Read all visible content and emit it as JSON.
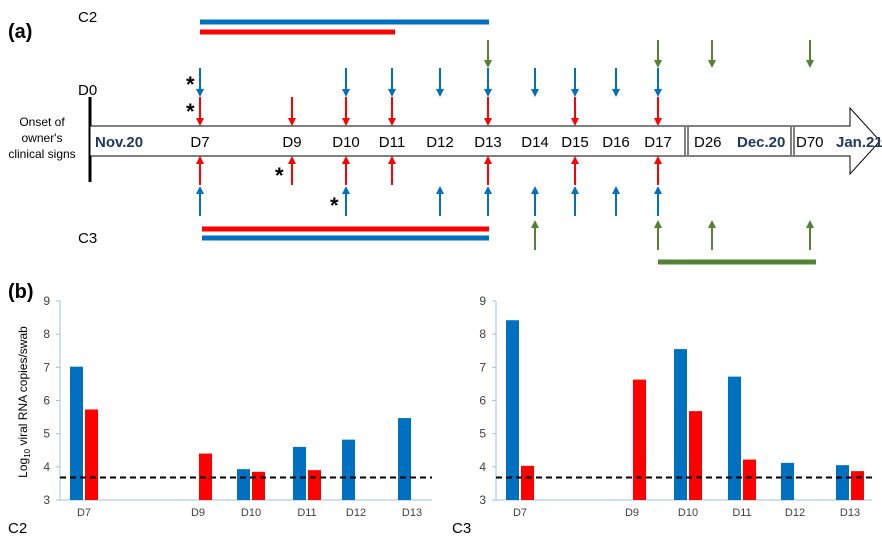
{
  "panel_labels": {
    "a": "(a)",
    "b": "(b)"
  },
  "timeline": {
    "onset_label_lines": [
      "Onset of",
      "owner's",
      "clinical signs"
    ],
    "row_labels": {
      "c2": "C2",
      "d0": "D0",
      "c3": "C3"
    },
    "start_month": "Nov.20",
    "day_labels": [
      "D7",
      "D9",
      "D10",
      "D11",
      "D12",
      "D13",
      "D14",
      "D15",
      "D16",
      "D17"
    ],
    "d26_label": "D26",
    "dec_label": "Dec.20",
    "d70_label": "D70",
    "jan_label": "Jan.21",
    "asterisk": "*",
    "colors": {
      "blue": "#0070c0",
      "red": "#ff0000",
      "green": "#548235",
      "navy": "#1f3864"
    },
    "c2_sampling": {
      "blue": [
        "D7",
        "D10",
        "D11",
        "D12",
        "D13",
        "D14",
        "D15",
        "D16",
        "D17"
      ],
      "red": [
        "D7",
        "D9",
        "D10",
        "D11",
        "D13",
        "D15",
        "D17"
      ],
      "green": [
        "D13",
        "D17",
        "D26",
        "D70"
      ]
    },
    "c3_sampling": {
      "blue": [
        "D7",
        "D10",
        "D12",
        "D13",
        "D14",
        "D15",
        "D16",
        "D17"
      ],
      "red": [
        "D7",
        "D9",
        "D10",
        "D11",
        "D13",
        "D15",
        "D17"
      ],
      "green": [
        "D14",
        "D17",
        "D26",
        "D70"
      ]
    }
  },
  "chart_data": [
    {
      "type": "bar",
      "panel": "C2",
      "ylabel": "Log10 viral RNA copies/swab",
      "ylim": [
        3,
        9
      ],
      "yticks": [
        3,
        4,
        5,
        6,
        7,
        8,
        9
      ],
      "categories": [
        "D7",
        "D9",
        "D10",
        "D11",
        "D12",
        "D13"
      ],
      "series": [
        {
          "color": "#0070c0",
          "values": [
            7.02,
            null,
            3.93,
            4.6,
            4.82,
            5.47
          ]
        },
        {
          "color": "#ff0000",
          "values": [
            5.73,
            4.4,
            3.85,
            3.9,
            null,
            null
          ]
        }
      ],
      "threshold": 3.68,
      "grid": false
    },
    {
      "type": "bar",
      "panel": "C3",
      "ylim": [
        3,
        9
      ],
      "yticks": [
        3,
        4,
        5,
        6,
        7,
        8,
        9
      ],
      "categories": [
        "D7",
        "D9",
        "D10",
        "D11",
        "D12",
        "D13"
      ],
      "series": [
        {
          "color": "#0070c0",
          "values": [
            8.42,
            null,
            7.55,
            6.72,
            4.12,
            4.05
          ]
        },
        {
          "color": "#ff0000",
          "values": [
            4.03,
            6.63,
            5.68,
            4.22,
            null,
            3.87
          ]
        }
      ],
      "threshold": 3.68,
      "grid": false
    }
  ]
}
